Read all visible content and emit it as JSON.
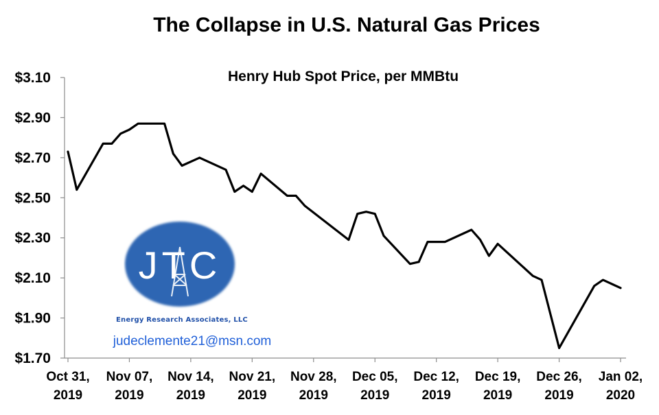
{
  "chart_data": {
    "type": "line",
    "title": "The Collapse in U.S. Natural Gas Prices",
    "subtitle": "Henry Hub Spot Price, per MMBtu",
    "ylim": [
      1.7,
      3.1
    ],
    "y_ticks": [
      1.7,
      1.9,
      2.1,
      2.3,
      2.5,
      2.7,
      2.9,
      3.1
    ],
    "y_tick_labels": [
      "$1.70",
      "$1.90",
      "$2.10",
      "$2.30",
      "$2.50",
      "$2.70",
      "$2.90",
      "$3.10"
    ],
    "x_ticks": [
      {
        "date": "2019-10-31",
        "line1": "Oct 31,",
        "line2": "2019"
      },
      {
        "date": "2019-11-07",
        "line1": "Nov 07,",
        "line2": "2019"
      },
      {
        "date": "2019-11-14",
        "line1": "Nov 14,",
        "line2": "2019"
      },
      {
        "date": "2019-11-21",
        "line1": "Nov 21,",
        "line2": "2019"
      },
      {
        "date": "2019-11-28",
        "line1": "Nov 28,",
        "line2": "2019"
      },
      {
        "date": "2019-12-05",
        "line1": "Dec 05,",
        "line2": "2019"
      },
      {
        "date": "2019-12-12",
        "line1": "Dec 12,",
        "line2": "2019"
      },
      {
        "date": "2019-12-19",
        "line1": "Dec 19,",
        "line2": "2019"
      },
      {
        "date": "2019-12-26",
        "line1": "Dec 26,",
        "line2": "2019"
      },
      {
        "date": "2020-01-02",
        "line1": "Jan 02,",
        "line2": "2020"
      }
    ],
    "grid": false,
    "series": [
      {
        "color": "#000000",
        "points": [
          {
            "x": "2019-10-31",
            "y": 2.73
          },
          {
            "x": "2019-11-01",
            "y": 2.54
          },
          {
            "x": "2019-11-04",
            "y": 2.77
          },
          {
            "x": "2019-11-05",
            "y": 2.77
          },
          {
            "x": "2019-11-06",
            "y": 2.82
          },
          {
            "x": "2019-11-07",
            "y": 2.84
          },
          {
            "x": "2019-11-08",
            "y": 2.87
          },
          {
            "x": "2019-11-11",
            "y": 2.87
          },
          {
            "x": "2019-11-12",
            "y": 2.72
          },
          {
            "x": "2019-11-13",
            "y": 2.66
          },
          {
            "x": "2019-11-15",
            "y": 2.7
          },
          {
            "x": "2019-11-18",
            "y": 2.64
          },
          {
            "x": "2019-11-19",
            "y": 2.53
          },
          {
            "x": "2019-11-20",
            "y": 2.56
          },
          {
            "x": "2019-11-21",
            "y": 2.53
          },
          {
            "x": "2019-11-22",
            "y": 2.62
          },
          {
            "x": "2019-11-25",
            "y": 2.51
          },
          {
            "x": "2019-11-26",
            "y": 2.51
          },
          {
            "x": "2019-11-27",
            "y": 2.46
          },
          {
            "x": "2019-12-02",
            "y": 2.29
          },
          {
            "x": "2019-12-03",
            "y": 2.42
          },
          {
            "x": "2019-12-04",
            "y": 2.43
          },
          {
            "x": "2019-12-05",
            "y": 2.42
          },
          {
            "x": "2019-12-06",
            "y": 2.31
          },
          {
            "x": "2019-12-09",
            "y": 2.17
          },
          {
            "x": "2019-12-10",
            "y": 2.18
          },
          {
            "x": "2019-12-11",
            "y": 2.28
          },
          {
            "x": "2019-12-13",
            "y": 2.28
          },
          {
            "x": "2019-12-16",
            "y": 2.34
          },
          {
            "x": "2019-12-17",
            "y": 2.29
          },
          {
            "x": "2019-12-18",
            "y": 2.21
          },
          {
            "x": "2019-12-19",
            "y": 2.27
          },
          {
            "x": "2019-12-20",
            "y": 2.23
          },
          {
            "x": "2019-12-23",
            "y": 2.11
          },
          {
            "x": "2019-12-24",
            "y": 2.09
          },
          {
            "x": "2019-12-26",
            "y": 1.75
          },
          {
            "x": "2019-12-30",
            "y": 2.06
          },
          {
            "x": "2019-12-31",
            "y": 2.09
          },
          {
            "x": "2020-01-02",
            "y": 2.05
          }
        ]
      }
    ]
  },
  "watermark": {
    "logo_text": "JTC",
    "logo_caption": "Energy Research Associates, LLC",
    "email": "judeclemente21@msn.com",
    "logo_color": "#2f66b3"
  }
}
